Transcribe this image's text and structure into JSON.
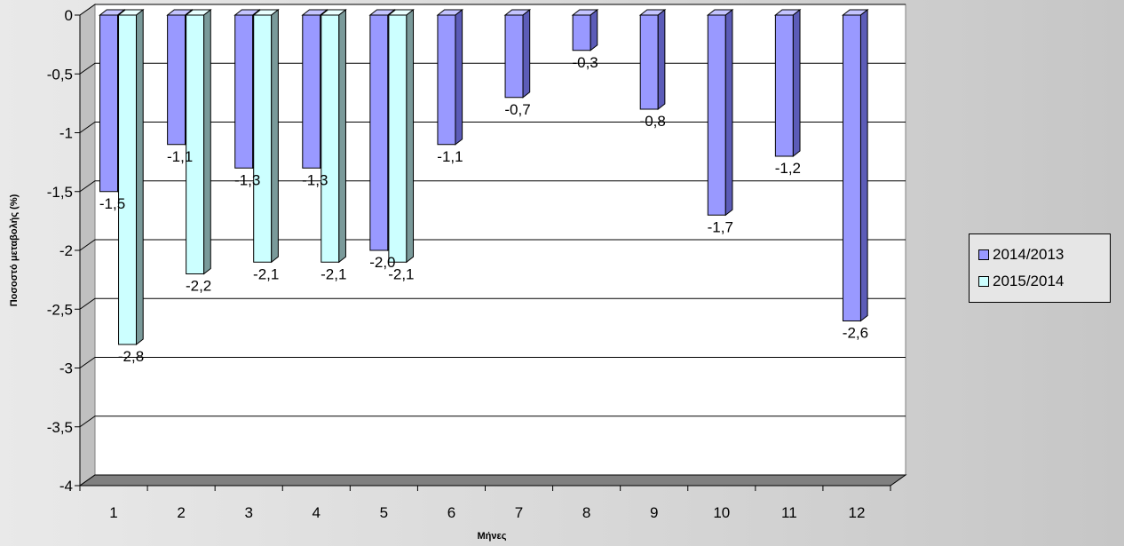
{
  "chart_data": {
    "type": "bar",
    "categories": [
      "1",
      "2",
      "3",
      "4",
      "5",
      "6",
      "7",
      "8",
      "9",
      "10",
      "11",
      "12"
    ],
    "series": [
      {
        "name": "2014/2013",
        "values": [
          -1.5,
          -1.1,
          -1.3,
          -1.3,
          -2.0,
          -1.1,
          -0.7,
          -0.3,
          -0.8,
          -1.7,
          -1.2,
          -2.6
        ],
        "labels": [
          "-1,5",
          "-1,1",
          "-1,3",
          "-1,3",
          "-2,0",
          "-1,1",
          "-0,7",
          "-0,3",
          "-0,8",
          "-1,7",
          "-1,2",
          "-2,6"
        ],
        "color": "#9999ff"
      },
      {
        "name": "2015/2014",
        "values": [
          -2.8,
          -2.2,
          -2.1,
          -2.1,
          -2.1,
          null,
          null,
          null,
          null,
          null,
          null,
          null
        ],
        "labels": [
          "-2,8",
          "-2,2",
          "-2,1",
          "-2,1",
          "-2,1",
          null,
          null,
          null,
          null,
          null,
          null,
          null
        ],
        "color": "#ccffff"
      }
    ],
    "yticks": [
      0,
      -0.5,
      -1,
      -1.5,
      -2,
      -2.5,
      -3,
      -3.5,
      -4
    ],
    "ytick_labels": [
      "0",
      "-0,5",
      "-1",
      "-1,5",
      "-2",
      "-2,5",
      "-3",
      "-3,5",
      "-4"
    ],
    "ylim": [
      -4,
      0
    ],
    "xlabel": "Μήνες",
    "ylabel": "Ποσοστό μεταβολής (%)",
    "grid": true,
    "legend_position": "right"
  }
}
